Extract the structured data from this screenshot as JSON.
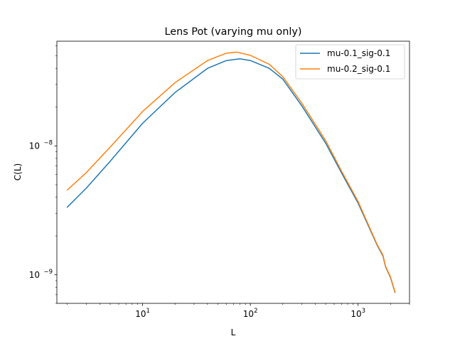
{
  "chart_data": {
    "type": "line",
    "title": "Lens Pot (varying mu only)",
    "xlabel": "L",
    "ylabel": "C(L)",
    "x_scale": "log",
    "y_scale": "log",
    "xlim": [
      1.6,
      3000
    ],
    "ylim": [
      6e-10,
      6.5e-08
    ],
    "x_ticks": [
      {
        "value": 10,
        "base": "10",
        "exp": "1"
      },
      {
        "value": 100,
        "base": "10",
        "exp": "2"
      },
      {
        "value": 1000,
        "base": "10",
        "exp": "3"
      }
    ],
    "y_ticks": [
      {
        "value": 1e-09,
        "base": "10",
        "exp": "−9"
      },
      {
        "value": 1e-08,
        "base": "10",
        "exp": "−8"
      }
    ],
    "grid": false,
    "legend_position": "top-right",
    "series": [
      {
        "name": "mu-0.1_sig-0.1",
        "color": "#1f77b4",
        "points": [
          [
            2,
            3.35e-09
          ],
          [
            3,
            4.7e-09
          ],
          [
            5,
            7.6e-09
          ],
          [
            10,
            1.5e-08
          ],
          [
            20,
            2.6e-08
          ],
          [
            40,
            4e-08
          ],
          [
            60,
            4.6e-08
          ],
          [
            80,
            4.75e-08
          ],
          [
            100,
            4.6e-08
          ],
          [
            150,
            4e-08
          ],
          [
            200,
            3.3e-08
          ],
          [
            300,
            2.05e-08
          ],
          [
            500,
            1.05e-08
          ],
          [
            700,
            6.2e-09
          ],
          [
            1000,
            3.6e-09
          ],
          [
            1500,
            1.7e-09
          ],
          [
            1700,
            1.4e-09
          ],
          [
            1800,
            1.15e-09
          ],
          [
            2000,
            9.5e-10
          ],
          [
            2200,
            7.3e-10
          ]
        ]
      },
      {
        "name": "mu-0.2_sig-0.1",
        "color": "#ff7f0e",
        "points": [
          [
            2,
            4.55e-09
          ],
          [
            3,
            6.2e-09
          ],
          [
            5,
            9.8e-09
          ],
          [
            10,
            1.85e-08
          ],
          [
            20,
            3.1e-08
          ],
          [
            40,
            4.6e-08
          ],
          [
            60,
            5.25e-08
          ],
          [
            75,
            5.35e-08
          ],
          [
            100,
            5.05e-08
          ],
          [
            150,
            4.3e-08
          ],
          [
            200,
            3.45e-08
          ],
          [
            300,
            2.15e-08
          ],
          [
            500,
            1.1e-08
          ],
          [
            700,
            6.4e-09
          ],
          [
            1000,
            3.7e-09
          ],
          [
            1500,
            1.72e-09
          ],
          [
            1700,
            1.42e-09
          ],
          [
            1800,
            1.16e-09
          ],
          [
            2000,
            9.6e-10
          ],
          [
            2200,
            7.35e-10
          ]
        ]
      }
    ]
  }
}
